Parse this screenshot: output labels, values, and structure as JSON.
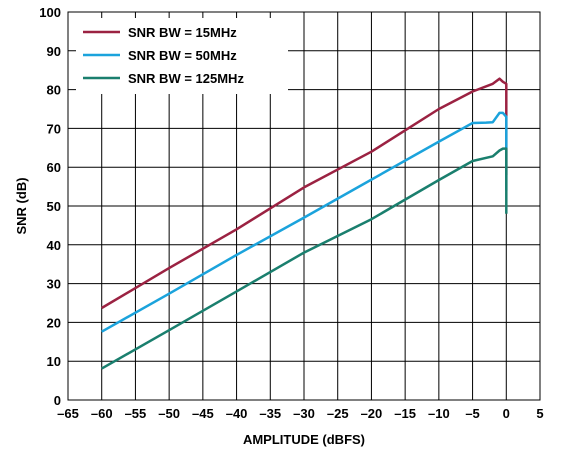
{
  "chart_data": {
    "type": "line",
    "title": "",
    "xlabel": "AMPLITUDE (dBFS)",
    "ylabel": "SNR (dB)",
    "xlim": [
      -65,
      5
    ],
    "ylim": [
      0,
      100
    ],
    "x_ticks": [
      "–65",
      "–60",
      "–55",
      "–50",
      "–45",
      "–40",
      "–35",
      "–30",
      "–25",
      "–20",
      "–15",
      "–10",
      "–5",
      "0",
      "5"
    ],
    "y_ticks": [
      "0",
      "10",
      "20",
      "30",
      "40",
      "50",
      "60",
      "70",
      "80",
      "90",
      "100"
    ],
    "grid": true,
    "legend_position": "top-left",
    "series": [
      {
        "name": "SNR BW = 15MHz",
        "color": "#9b2242",
        "points": [
          [
            -60,
            23.7
          ],
          [
            -50,
            34
          ],
          [
            -40,
            44
          ],
          [
            -30,
            54.8
          ],
          [
            -20,
            64
          ],
          [
            -10,
            75
          ],
          [
            -5,
            79.5
          ],
          [
            -2,
            81.5
          ],
          [
            -1,
            82.8
          ],
          [
            -0.5,
            82
          ],
          [
            0,
            81.5
          ],
          [
            0,
            58
          ]
        ]
      },
      {
        "name": "SNR BW = 50MHz",
        "color": "#1ba3dc",
        "points": [
          [
            -60,
            17.6
          ],
          [
            -50,
            27.4
          ],
          [
            -40,
            37.4
          ],
          [
            -30,
            47
          ],
          [
            -20,
            56.8
          ],
          [
            -10,
            66.6
          ],
          [
            -5,
            71.4
          ],
          [
            -3,
            71.5
          ],
          [
            -2,
            71.6
          ],
          [
            -1,
            74
          ],
          [
            -0.5,
            74
          ],
          [
            0,
            73
          ],
          [
            0,
            54
          ]
        ]
      },
      {
        "name": "SNR BW = 125MHz",
        "color": "#1a7f6e",
        "points": [
          [
            -60,
            8.1
          ],
          [
            -50,
            18
          ],
          [
            -40,
            28
          ],
          [
            -30,
            38
          ],
          [
            -20,
            46.6
          ],
          [
            -10,
            56.7
          ],
          [
            -5,
            61.6
          ],
          [
            -2,
            62.8
          ],
          [
            -1,
            64.3
          ],
          [
            -0.5,
            64.8
          ],
          [
            0,
            64.8
          ],
          [
            0,
            48
          ]
        ]
      }
    ]
  }
}
